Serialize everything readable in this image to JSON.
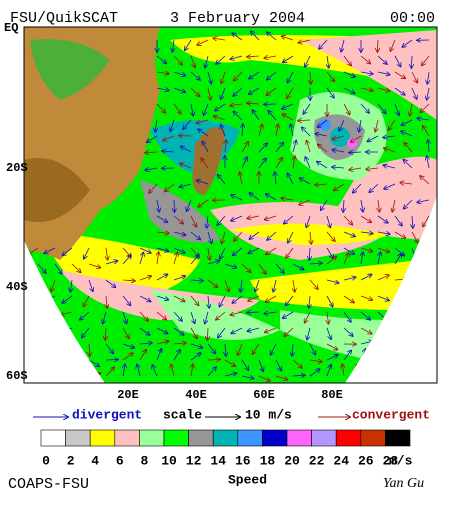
{
  "header": {
    "source": "FSU/QuikSCAT",
    "date": "3 February 2004",
    "time": "00:00"
  },
  "map": {
    "lat_labels": [
      "EQ",
      "20S",
      "40S",
      "60S"
    ],
    "lon_labels": [
      "20E",
      "40E",
      "60E",
      "80E"
    ]
  },
  "legend": {
    "divergent": "divergent",
    "scale": "scale",
    "scale_value": "10 m/s",
    "convergent": "convergent"
  },
  "colorbar": {
    "colors": [
      "#ffffff",
      "#c8c8c8",
      "#ffff00",
      "#ffc0c0",
      "#99ff99",
      "#00ff00",
      "#969696",
      "#00b4b4",
      "#3c96ff",
      "#0000c8",
      "#ff64ff",
      "#b496ff",
      "#ff0000",
      "#c83200",
      "#000000"
    ],
    "labels": [
      0,
      2,
      4,
      6,
      8,
      10,
      12,
      14,
      16,
      18,
      20,
      22,
      24,
      26,
      28
    ],
    "unit": "m/s",
    "title": "Speed"
  },
  "footer": {
    "credit": "COAPS-FSU",
    "author": "Yan Gu"
  }
}
